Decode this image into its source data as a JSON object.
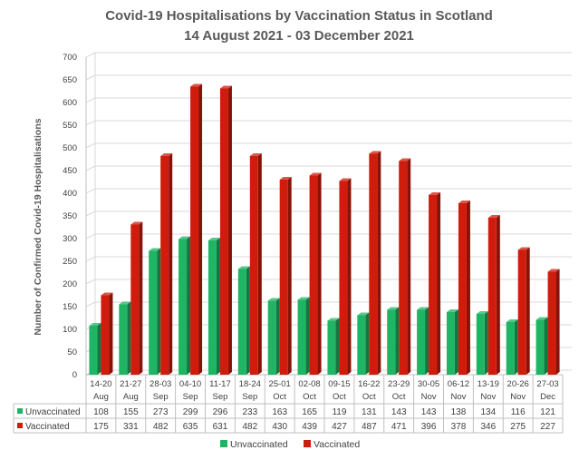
{
  "chart_data": {
    "type": "bar",
    "title": "Covid-19 Hospitalisations by Vaccination Status in Scotland",
    "subtitle": "14 August 2021 - 03 December 2021",
    "ylabel": "Number of Confirmed Covid-19 Hospitalisations",
    "ylim": [
      0,
      700
    ],
    "yticks": [
      0,
      50,
      100,
      150,
      200,
      250,
      300,
      350,
      400,
      450,
      500,
      550,
      600,
      650,
      700
    ],
    "grid": true,
    "legend_position": "bottom",
    "categories": [
      [
        "14-20",
        "Aug"
      ],
      [
        "21-27",
        "Aug"
      ],
      [
        "28-03",
        "Sep"
      ],
      [
        "04-10",
        "Sep"
      ],
      [
        "11-17",
        "Sep"
      ],
      [
        "18-24",
        "Sep"
      ],
      [
        "25-01",
        "Oct"
      ],
      [
        "02-08",
        "Oct"
      ],
      [
        "09-15",
        "Oct"
      ],
      [
        "16-22",
        "Oct"
      ],
      [
        "23-29",
        "Oct"
      ],
      [
        "30-05",
        "Nov"
      ],
      [
        "06-12",
        "Nov"
      ],
      [
        "13-19",
        "Nov"
      ],
      [
        "20-26",
        "Nov"
      ],
      [
        "27-03",
        "Dec"
      ]
    ],
    "series": [
      {
        "name": "Unvaccinated",
        "color": "#1fb564",
        "values": [
          108,
          155,
          273,
          299,
          296,
          233,
          163,
          165,
          119,
          131,
          143,
          143,
          138,
          134,
          116,
          121
        ]
      },
      {
        "name": "Vaccinated",
        "color": "#d01c0c",
        "values": [
          175,
          331,
          482,
          635,
          631,
          482,
          430,
          439,
          427,
          487,
          471,
          396,
          378,
          346,
          275,
          227
        ]
      }
    ]
  }
}
